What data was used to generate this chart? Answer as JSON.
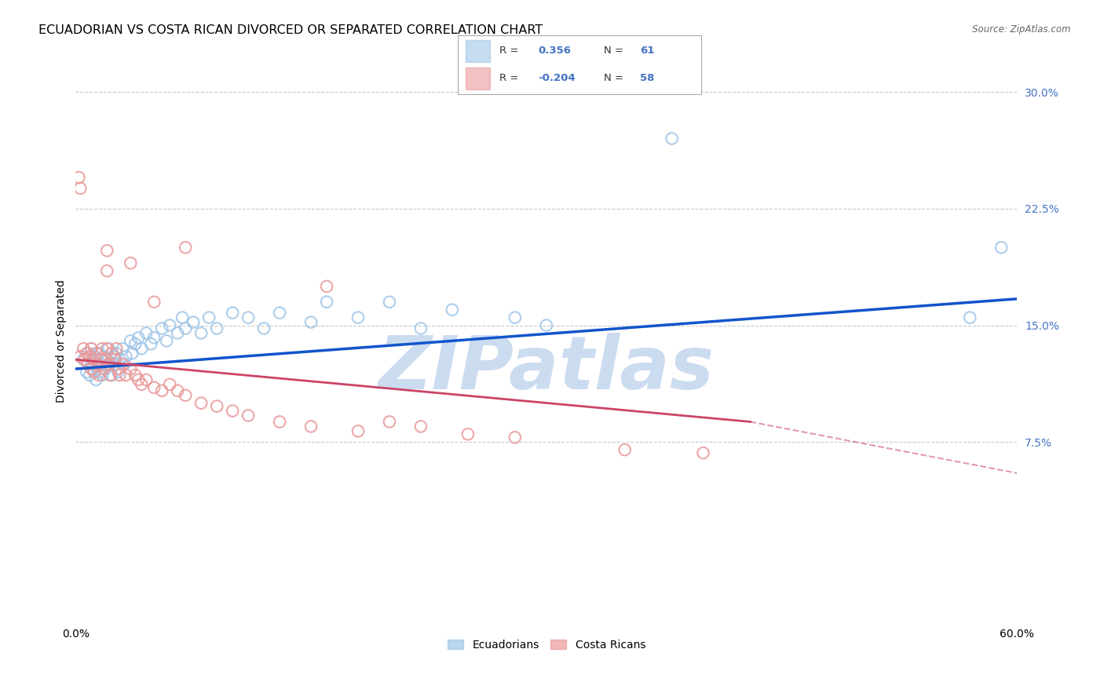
{
  "title": "ECUADORIAN VS COSTA RICAN DIVORCED OR SEPARATED CORRELATION CHART",
  "source": "Source: ZipAtlas.com",
  "ylabel": "Divorced or Separated",
  "watermark": "ZIPatlas",
  "xlim": [
    0.0,
    0.6
  ],
  "ylim": [
    -0.04,
    0.32
  ],
  "xtick_positions": [
    0.0,
    0.1,
    0.2,
    0.3,
    0.4,
    0.5,
    0.6
  ],
  "xticklabels": [
    "0.0%",
    "",
    "",
    "",
    "",
    "",
    "60.0%"
  ],
  "ytick_positions": [
    0.075,
    0.15,
    0.225,
    0.3
  ],
  "ytick_right_labels": [
    "7.5%",
    "15.0%",
    "22.5%",
    "30.0%"
  ],
  "blue_x": [
    0.005,
    0.007,
    0.008,
    0.009,
    0.01,
    0.01,
    0.011,
    0.012,
    0.013,
    0.013,
    0.015,
    0.015,
    0.016,
    0.017,
    0.018,
    0.019,
    0.02,
    0.021,
    0.022,
    0.023,
    0.024,
    0.025,
    0.026,
    0.027,
    0.028,
    0.03,
    0.031,
    0.032,
    0.035,
    0.036,
    0.038,
    0.04,
    0.042,
    0.045,
    0.048,
    0.05,
    0.055,
    0.058,
    0.06,
    0.065,
    0.068,
    0.07,
    0.075,
    0.08,
    0.085,
    0.09,
    0.1,
    0.11,
    0.12,
    0.13,
    0.15,
    0.16,
    0.18,
    0.2,
    0.22,
    0.24,
    0.28,
    0.3,
    0.38,
    0.57,
    0.59
  ],
  "blue_y": [
    0.128,
    0.12,
    0.132,
    0.118,
    0.125,
    0.135,
    0.122,
    0.13,
    0.115,
    0.128,
    0.132,
    0.12,
    0.125,
    0.118,
    0.13,
    0.122,
    0.128,
    0.135,
    0.125,
    0.118,
    0.13,
    0.125,
    0.132,
    0.12,
    0.128,
    0.135,
    0.125,
    0.13,
    0.14,
    0.132,
    0.138,
    0.142,
    0.135,
    0.145,
    0.138,
    0.142,
    0.148,
    0.14,
    0.15,
    0.145,
    0.155,
    0.148,
    0.152,
    0.145,
    0.155,
    0.148,
    0.158,
    0.155,
    0.148,
    0.158,
    0.152,
    0.165,
    0.155,
    0.165,
    0.148,
    0.16,
    0.155,
    0.15,
    0.27,
    0.155,
    0.2
  ],
  "pink_x": [
    0.003,
    0.005,
    0.006,
    0.007,
    0.008,
    0.009,
    0.01,
    0.01,
    0.011,
    0.012,
    0.013,
    0.014,
    0.015,
    0.016,
    0.017,
    0.018,
    0.019,
    0.02,
    0.021,
    0.022,
    0.023,
    0.025,
    0.026,
    0.027,
    0.028,
    0.03,
    0.032,
    0.035,
    0.038,
    0.04,
    0.042,
    0.045,
    0.05,
    0.055,
    0.06,
    0.065,
    0.07,
    0.08,
    0.09,
    0.1,
    0.11,
    0.13,
    0.15,
    0.18,
    0.2,
    0.22,
    0.25,
    0.28,
    0.35,
    0.4,
    0.002,
    0.003,
    0.02,
    0.02,
    0.035,
    0.05,
    0.07,
    0.16
  ],
  "pink_y": [
    0.13,
    0.135,
    0.128,
    0.132,
    0.125,
    0.13,
    0.122,
    0.135,
    0.128,
    0.12,
    0.132,
    0.125,
    0.118,
    0.128,
    0.135,
    0.122,
    0.128,
    0.135,
    0.125,
    0.118,
    0.132,
    0.128,
    0.135,
    0.122,
    0.118,
    0.125,
    0.118,
    0.122,
    0.118,
    0.115,
    0.112,
    0.115,
    0.11,
    0.108,
    0.112,
    0.108,
    0.105,
    0.1,
    0.098,
    0.095,
    0.092,
    0.088,
    0.085,
    0.082,
    0.088,
    0.085,
    0.08,
    0.078,
    0.07,
    0.068,
    0.245,
    0.238,
    0.198,
    0.185,
    0.19,
    0.165,
    0.2,
    0.175
  ],
  "blue_line_x": [
    0.0,
    0.6
  ],
  "blue_line_y": [
    0.122,
    0.167
  ],
  "pink_solid_line_x": [
    0.0,
    0.43
  ],
  "pink_solid_line_y": [
    0.128,
    0.088
  ],
  "pink_dashed_line_x": [
    0.43,
    0.6
  ],
  "pink_dashed_line_y": [
    0.088,
    0.055
  ],
  "bg_color": "#ffffff",
  "blue_scatter_color": "#9fc5e8",
  "pink_scatter_color": "#ea9999",
  "blue_line_color": "#1155cc",
  "pink_line_color": "#cc4466",
  "grid_color": "#bbbbbb",
  "right_tick_color": "#4472c4",
  "watermark_color": "#ccdcf0",
  "title_fontsize": 11.5,
  "axis_label_fontsize": 10,
  "tick_fontsize": 10
}
